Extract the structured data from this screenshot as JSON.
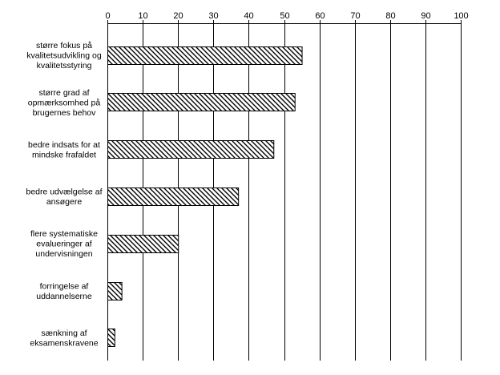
{
  "chart_data": {
    "type": "bar",
    "orientation": "horizontal",
    "categories": [
      [
        "større fokus på",
        "kvalitetsudvikling og",
        "kvalitetsstyring"
      ],
      [
        "større grad af",
        "opmærksomhed på",
        "brugernes behov"
      ],
      [
        "bedre indsats for at",
        "mindske frafaldet"
      ],
      [
        "bedre udvælgelse af",
        "ansøgere"
      ],
      [
        "flere systematiske",
        "evalueringer af",
        "undervisningen"
      ],
      [
        "forringelse af",
        "uddannelserne"
      ],
      [
        "sænkning af",
        "eksamenskravene"
      ]
    ],
    "values": [
      55,
      53,
      47,
      37,
      20,
      4,
      2
    ],
    "xlim": [
      0,
      100
    ],
    "xticks": [
      "0",
      "10",
      "20",
      "30",
      "40",
      "50",
      "60",
      "70",
      "80",
      "90",
      "100"
    ],
    "xaxis_position": "top",
    "grid": true,
    "bar_fill": "diagonal-hatch",
    "colors": {
      "bar_stroke": "#000000",
      "hatch": "#000000",
      "grid": "#000000",
      "background": "#ffffff"
    }
  }
}
